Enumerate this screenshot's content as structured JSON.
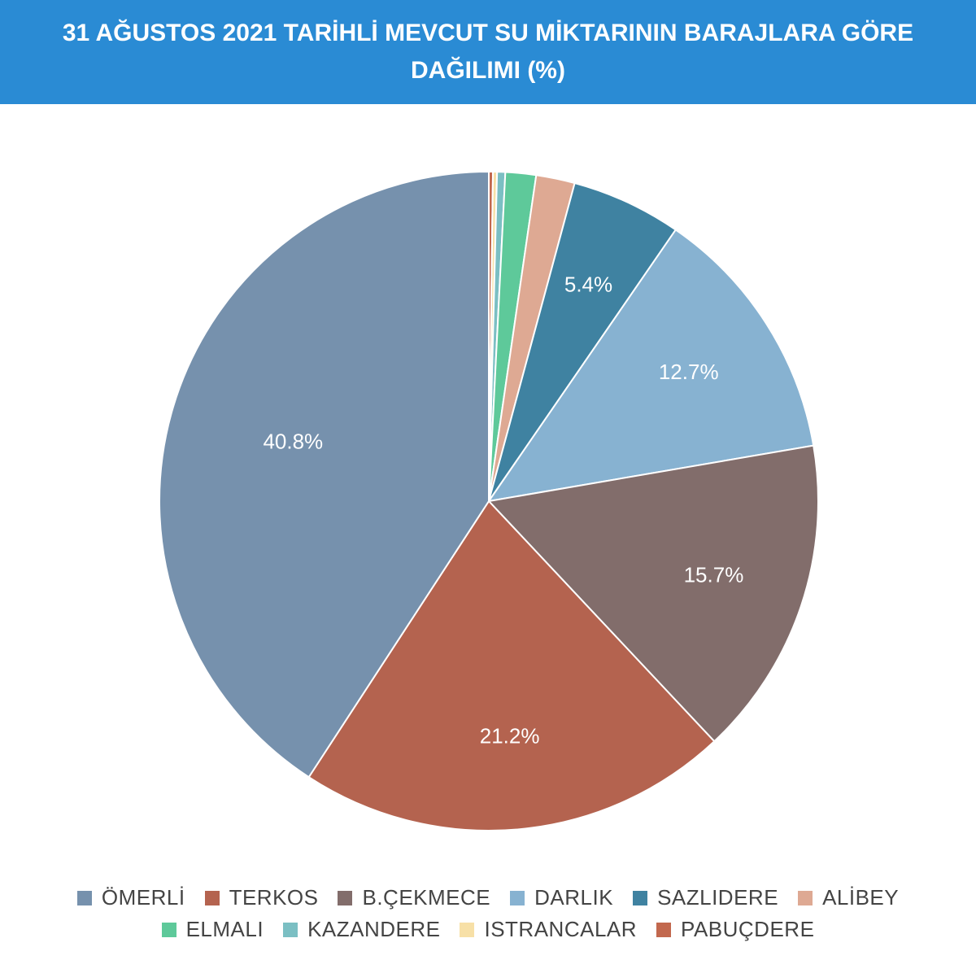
{
  "header": {
    "title": "31 AĞUSTOS 2021 TARİHLİ MEVCUT SU MİKTARININ BARAJLARA GÖRE DAĞILIMI (%)"
  },
  "chart_data": {
    "type": "pie",
    "title": "31 AĞUSTOS 2021 TARİHLİ MEVCUT SU MİKTARININ BARAJLARA GÖRE DAĞILIMI (%)",
    "legend_position": "bottom",
    "slices": [
      {
        "label": "ÖMERLİ",
        "value": 40.8,
        "display": "40.8%",
        "color": "#7691ad"
      },
      {
        "label": "TERKOS",
        "value": 21.2,
        "display": "21.2%",
        "color": "#b4634f"
      },
      {
        "label": "B.ÇEKMECE",
        "value": 15.7,
        "display": "15.7%",
        "color": "#826d6b"
      },
      {
        "label": "DARLIK",
        "value": 12.7,
        "display": "12.7%",
        "color": "#87b2d1"
      },
      {
        "label": "SAZLIDERE",
        "value": 5.4,
        "display": "5.4%",
        "color": "#3f82a1"
      },
      {
        "label": "ALİBEY",
        "value": 1.9,
        "display": "",
        "color": "#dea993"
      },
      {
        "label": "ELMALI",
        "value": 1.5,
        "display": "",
        "color": "#5ec99a"
      },
      {
        "label": "KAZANDERE",
        "value": 0.4,
        "display": "",
        "color": "#7bbfc3"
      },
      {
        "label": "ISTRANCALAR",
        "value": 0.2,
        "display": "",
        "color": "#f7e0a7"
      },
      {
        "label": "PABUÇDERE",
        "value": 0.2,
        "display": "",
        "color": "#c2684e"
      }
    ]
  }
}
